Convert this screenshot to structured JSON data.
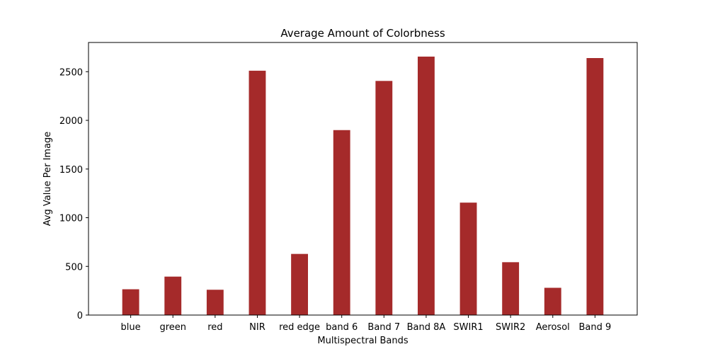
{
  "chart_data": {
    "type": "bar",
    "title": "Average Amount of Colorbness",
    "xlabel": "Multispectral Bands",
    "ylabel": "Avg Value Per Image",
    "categories": [
      "blue",
      "green",
      "red",
      "NIR",
      "red edge",
      "band 6",
      "Band 7",
      "Band 8A",
      "SWIR1",
      "SWIR2",
      "Aerosol",
      "Band 9"
    ],
    "values": [
      265,
      395,
      260,
      2510,
      628,
      1900,
      2405,
      2655,
      1155,
      543,
      280,
      2640
    ],
    "ylim": [
      0,
      2800
    ],
    "yticks": [
      0,
      500,
      1000,
      1500,
      2000,
      2500
    ],
    "bar_color": "#a52a2a",
    "grid": false,
    "legend": "none"
  }
}
